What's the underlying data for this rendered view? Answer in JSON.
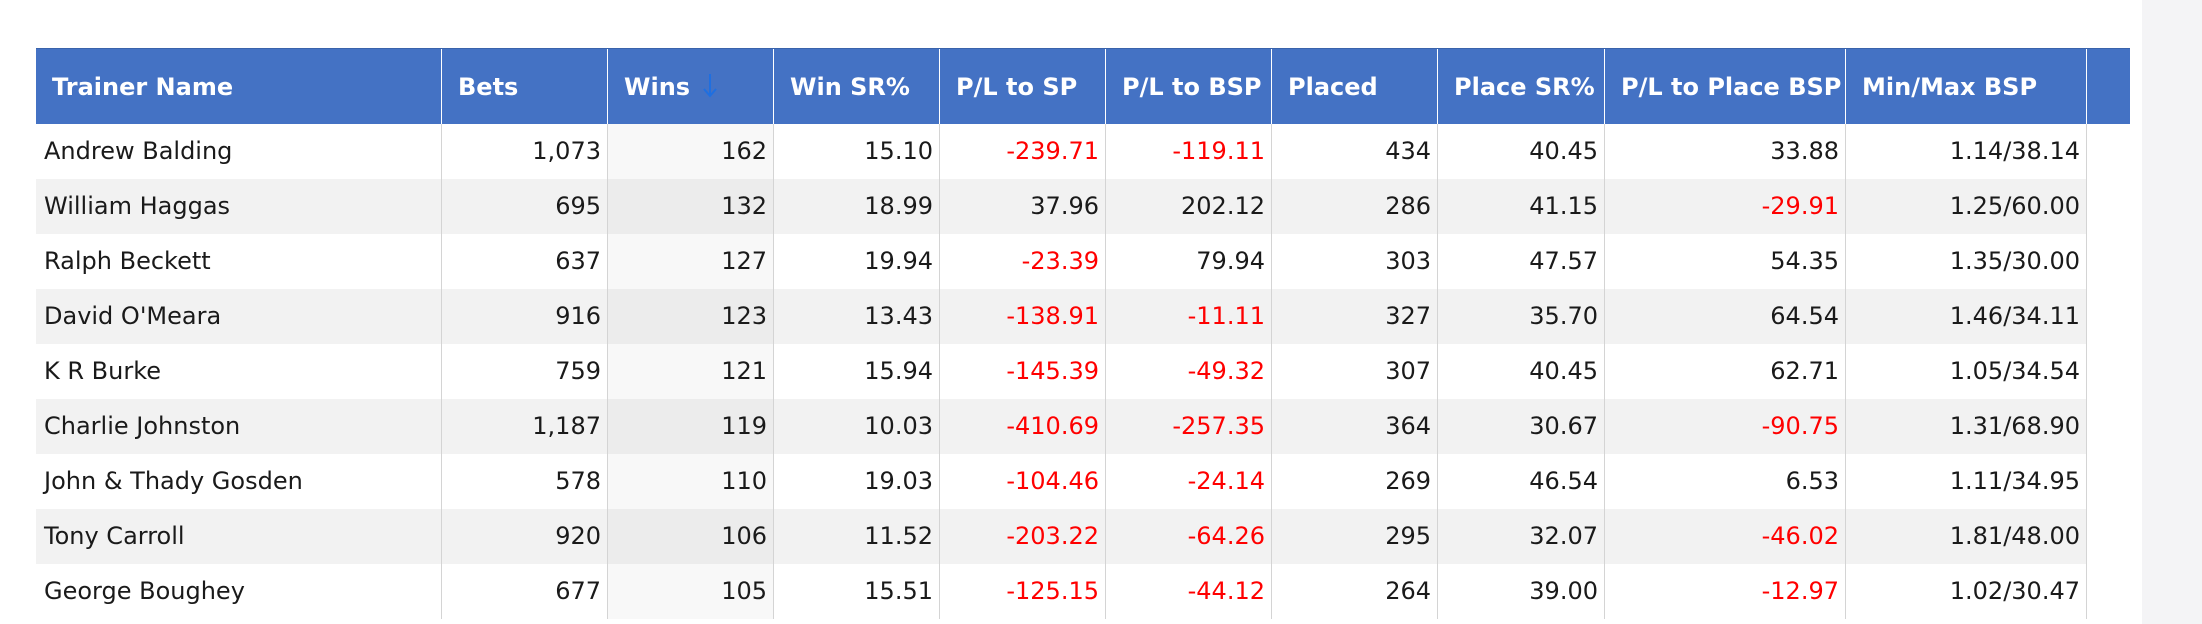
{
  "table": {
    "columns": [
      {
        "key": "trainer",
        "label": "Trainer Name"
      },
      {
        "key": "bets",
        "label": "Bets"
      },
      {
        "key": "wins",
        "label": "Wins"
      },
      {
        "key": "win_sr",
        "label": "Win SR%"
      },
      {
        "key": "pl_sp",
        "label": "P/L to SP"
      },
      {
        "key": "pl_bsp",
        "label": "P/L to BSP"
      },
      {
        "key": "placed",
        "label": "Placed"
      },
      {
        "key": "place_sr",
        "label": "Place SR%"
      },
      {
        "key": "pl_place_bsp",
        "label": "P/L to Place BSP"
      },
      {
        "key": "minmax_bsp",
        "label": "Min/Max BSP"
      }
    ],
    "sorted_column": "Wins",
    "sort_direction": "descending",
    "sort_icon": "arrow-down-icon",
    "rows": [
      [
        "Andrew Balding",
        "1,073",
        "162",
        "15.10",
        "-239.71",
        "-119.11",
        "434",
        "40.45",
        "33.88",
        "1.14/38.14"
      ],
      [
        "William Haggas",
        "695",
        "132",
        "18.99",
        "37.96",
        "202.12",
        "286",
        "41.15",
        "-29.91",
        "1.25/60.00"
      ],
      [
        "Ralph Beckett",
        "637",
        "127",
        "19.94",
        "-23.39",
        "79.94",
        "303",
        "47.57",
        "54.35",
        "1.35/30.00"
      ],
      [
        "David O'Meara",
        "916",
        "123",
        "13.43",
        "-138.91",
        "-11.11",
        "327",
        "35.70",
        "64.54",
        "1.46/34.11"
      ],
      [
        "K R Burke",
        "759",
        "121",
        "15.94",
        "-145.39",
        "-49.32",
        "307",
        "40.45",
        "62.71",
        "1.05/34.54"
      ],
      [
        "Charlie Johnston",
        "1,187",
        "119",
        "10.03",
        "-410.69",
        "-257.35",
        "364",
        "30.67",
        "-90.75",
        "1.31/68.90"
      ],
      [
        "John & Thady Gosden",
        "578",
        "110",
        "19.03",
        "-104.46",
        "-24.14",
        "269",
        "46.54",
        "6.53",
        "1.11/34.95"
      ],
      [
        "Tony Carroll",
        "920",
        "106",
        "11.52",
        "-203.22",
        "-64.26",
        "295",
        "32.07",
        "-46.02",
        "1.81/48.00"
      ],
      [
        "George Boughey",
        "677",
        "105",
        "15.51",
        "-125.15",
        "-44.12",
        "264",
        "39.00",
        "-12.97",
        "1.02/30.47"
      ]
    ]
  },
  "scrollbar": {
    "up_icon": "triangle-up-icon"
  },
  "colors": {
    "header_bg": "#4472c4",
    "header_text": "#ffffff",
    "negative": "#ff0000",
    "sort_arrow": "#1f6fe0",
    "alt_row": "#f2f2f2"
  }
}
